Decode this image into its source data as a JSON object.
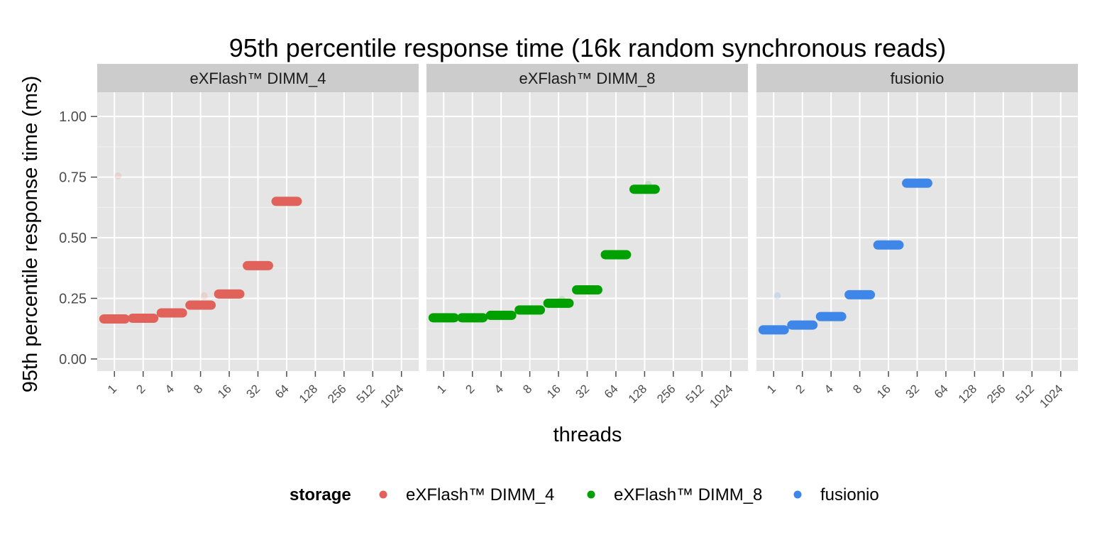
{
  "chart_data": {
    "type": "scatter",
    "title": "95th percentile response time (16k random synchronous reads)",
    "xlabel": "threads",
    "ylabel": "95th percentile response time (ms)",
    "ylim": [
      -0.05,
      1.1
    ],
    "y_ticks": [
      "0.00",
      "0.25",
      "0.50",
      "0.75",
      "1.00"
    ],
    "y_tick_values": [
      0,
      0.25,
      0.5,
      0.75,
      1.0
    ],
    "x_ticks": [
      "1",
      "2",
      "4",
      "8",
      "16",
      "32",
      "64",
      "128",
      "256",
      "512",
      "1024"
    ],
    "grid": true,
    "legend": {
      "title": "storage",
      "placement": "bottom",
      "entries": [
        "eXFlash™ DIMM_4",
        "eXFlash™ DIMM_8",
        "fusionio"
      ]
    },
    "panels": [
      {
        "name": "eXFlash™ DIMM_4",
        "color": "#E0625A",
        "points": [
          {
            "x": "1",
            "y": 0.165
          },
          {
            "x": "2",
            "y": 0.168
          },
          {
            "x": "4",
            "y": 0.19
          },
          {
            "x": "8",
            "y": 0.222
          },
          {
            "x": "16",
            "y": 0.268
          },
          {
            "x": "32",
            "y": 0.385
          },
          {
            "x": "64",
            "y": 0.65
          }
        ],
        "outliers": [
          {
            "x": "1",
            "y": 0.755
          },
          {
            "x": "8",
            "y": 0.26
          }
        ]
      },
      {
        "name": "eXFlash™ DIMM_8",
        "color": "#00A000",
        "points": [
          {
            "x": "1",
            "y": 0.17
          },
          {
            "x": "2",
            "y": 0.17
          },
          {
            "x": "4",
            "y": 0.18
          },
          {
            "x": "8",
            "y": 0.202
          },
          {
            "x": "16",
            "y": 0.23
          },
          {
            "x": "32",
            "y": 0.285
          },
          {
            "x": "64",
            "y": 0.43
          },
          {
            "x": "128",
            "y": 0.7
          }
        ],
        "outliers": [
          {
            "x": "16",
            "y": 0.245
          },
          {
            "x": "128",
            "y": 0.72
          }
        ]
      },
      {
        "name": "fusionio",
        "color": "#3E86E8",
        "points": [
          {
            "x": "1",
            "y": 0.12
          },
          {
            "x": "2",
            "y": 0.14
          },
          {
            "x": "4",
            "y": 0.175
          },
          {
            "x": "8",
            "y": 0.265
          },
          {
            "x": "16",
            "y": 0.47
          },
          {
            "x": "32",
            "y": 0.725
          }
        ],
        "outliers": [
          {
            "x": "1",
            "y": 0.26
          }
        ]
      }
    ]
  }
}
